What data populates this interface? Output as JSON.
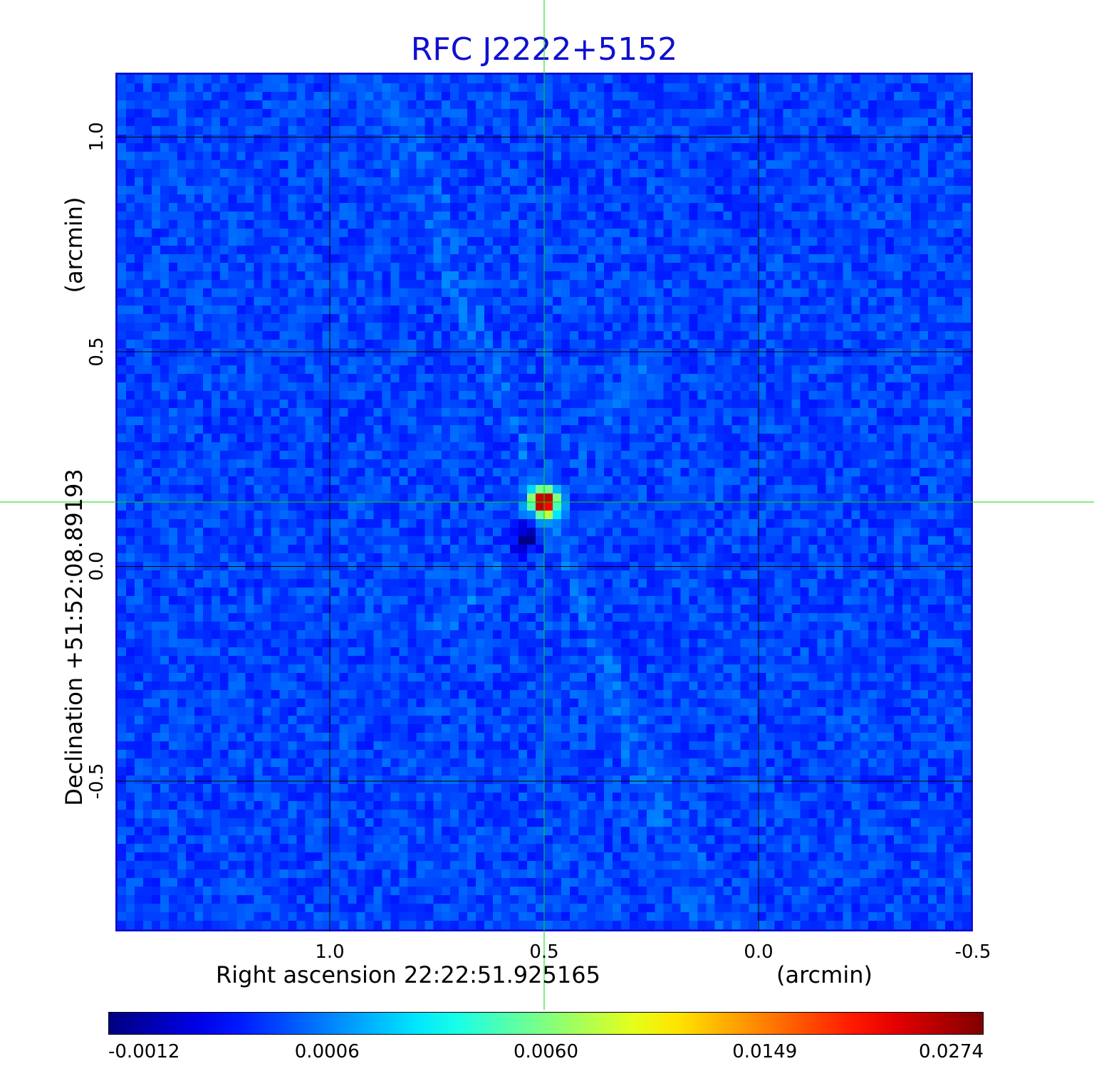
{
  "chart_data": {
    "type": "heatmap",
    "title": "RFC J2222+5152",
    "xlabel": "Right ascension  22:22:51.925165",
    "xunit": "(arcmin)",
    "ylabel": "Declination  +51:52:08.89193",
    "yunit": "(arcmin)",
    "xlim": [
      1.5,
      -0.5
    ],
    "ylim": [
      -0.85,
      1.15
    ],
    "x_ticks": [
      "1.0",
      "0.5",
      "0.0",
      "-0.5"
    ],
    "x_tick_values": [
      1.0,
      0.5,
      0.0,
      -0.5
    ],
    "y_ticks": [
      "1.0",
      "0.5",
      "0.0",
      "-0.5"
    ],
    "y_tick_values": [
      1.0,
      0.5,
      0.0,
      -0.5
    ],
    "grid": true,
    "colormap": "jet",
    "colorbar_ticks": [
      "-0.0012",
      "0.0006",
      "0.0060",
      "0.0149",
      "0.0274"
    ],
    "colorbar_values": [
      -0.0012,
      0.0006,
      0.006,
      0.0149,
      0.0274
    ],
    "source": {
      "x": 0.5,
      "y": 0.15,
      "peak": 0.0274
    },
    "crosshair": {
      "x": 0.5,
      "y": 0.15
    },
    "colors": {
      "title": "#1010d0",
      "frame": "#1010d0",
      "grid": "#000000",
      "crosshair": "#00dd00"
    }
  }
}
